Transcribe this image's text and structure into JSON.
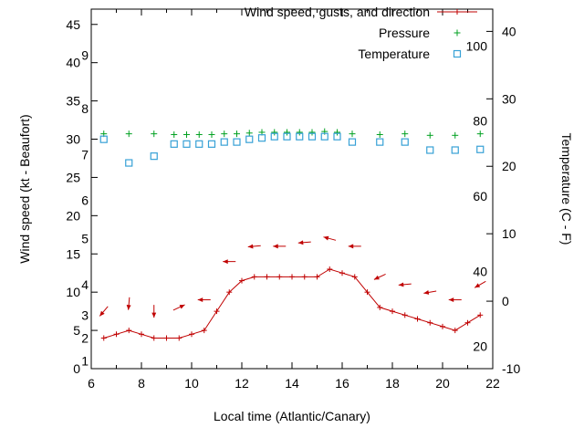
{
  "chart_data": {
    "type": "line",
    "title": "",
    "xlabel": "Local time (Atlantic/Canary)",
    "ylabel": "Wind speed (kt - Beaufort)",
    "y2label": "Temperature (C - F)",
    "x_range": [
      6,
      22
    ],
    "y_range": [
      0,
      47
    ],
    "y2_range": [
      -10,
      43.3
    ],
    "x_ticks": [
      6,
      8,
      10,
      12,
      14,
      16,
      18,
      20,
      22
    ],
    "x_minor_ticks": [
      7,
      9,
      11,
      13,
      15,
      17,
      19,
      21
    ],
    "y_ticks": [
      0,
      5,
      10,
      15,
      20,
      25,
      30,
      35,
      40,
      45
    ],
    "y2_ticks": [
      -10,
      0,
      10,
      20,
      30,
      40
    ],
    "beaufort_labels": [
      {
        "label": "1",
        "kt": 1
      },
      {
        "label": "2",
        "kt": 4
      },
      {
        "label": "3",
        "kt": 7
      },
      {
        "label": "4",
        "kt": 11
      },
      {
        "label": "5",
        "kt": 17
      },
      {
        "label": "6",
        "kt": 22
      },
      {
        "label": "7",
        "kt": 28
      },
      {
        "label": "8",
        "kt": 34
      },
      {
        "label": "9",
        "kt": 41
      }
    ],
    "fahrenheit_labels": [
      {
        "label": "20",
        "c": -6.7
      },
      {
        "label": "40",
        "c": 4.4
      },
      {
        "label": "60",
        "c": 15.6
      },
      {
        "label": "80",
        "c": 26.7
      },
      {
        "label": "100",
        "c": 37.8
      }
    ],
    "legend": [
      {
        "label": "Wind speed, gusts, and direction",
        "marker": "line-plus",
        "series": "wind_speed"
      },
      {
        "label": "Pressure",
        "marker": "plus",
        "series": "pressure"
      },
      {
        "label": "Temperature",
        "marker": "square",
        "series": "temperature"
      }
    ],
    "legend_position": "top-right-inside",
    "grid": false,
    "colors": {
      "wind_speed": "#c00000",
      "pressure": "#00a020",
      "temperature": "#37a1d6",
      "axis": "#000000"
    },
    "series": {
      "wind_speed": {
        "x": [
          6.5,
          7,
          7.5,
          8,
          8.5,
          9,
          9.5,
          10,
          10.5,
          11,
          11.5,
          12,
          12.5,
          13,
          13.5,
          14,
          14.5,
          15,
          15.5,
          16,
          16.5,
          17,
          17.5,
          18,
          18.5,
          19,
          19.5,
          20,
          20.5,
          21,
          21.5
        ],
        "y": [
          4,
          4.5,
          5,
          4.5,
          4,
          4,
          4,
          4.5,
          5,
          7.5,
          10,
          11.5,
          12,
          12,
          12,
          12,
          12,
          12,
          13,
          12.5,
          12,
          10,
          8,
          7.5,
          7,
          6.5,
          6,
          5.5,
          5,
          6,
          7
        ]
      },
      "gusts_direction": {
        "points": [
          {
            "x": 6.5,
            "y": 7.5,
            "dir": 230
          },
          {
            "x": 7.5,
            "y": 8.5,
            "dir": 265
          },
          {
            "x": 8.5,
            "y": 7.5,
            "dir": 270
          },
          {
            "x": 9.5,
            "y": 8,
            "dir": 25
          },
          {
            "x": 10.5,
            "y": 9,
            "dir": 180
          },
          {
            "x": 11.5,
            "y": 14,
            "dir": 180
          },
          {
            "x": 12.5,
            "y": 16,
            "dir": 185
          },
          {
            "x": 13.5,
            "y": 16,
            "dir": 180
          },
          {
            "x": 14.5,
            "y": 16.5,
            "dir": 185
          },
          {
            "x": 15.5,
            "y": 17,
            "dir": 165
          },
          {
            "x": 16.5,
            "y": 16,
            "dir": 180
          },
          {
            "x": 17.5,
            "y": 12,
            "dir": 205
          },
          {
            "x": 18.5,
            "y": 11,
            "dir": 185
          },
          {
            "x": 19.5,
            "y": 10,
            "dir": 190
          },
          {
            "x": 20.5,
            "y": 9,
            "dir": 180
          },
          {
            "x": 21.5,
            "y": 11,
            "dir": 210
          }
        ]
      },
      "pressure": {
        "x": [
          6.5,
          7.5,
          8.5,
          9.3,
          9.8,
          10.3,
          10.8,
          11.3,
          11.8,
          12.3,
          12.8,
          13.3,
          13.8,
          14.3,
          14.8,
          15.3,
          15.8,
          16.4,
          17.5,
          18.5,
          19.5,
          20.5,
          21.5
        ],
        "y": [
          30.7,
          30.7,
          30.7,
          30.6,
          30.6,
          30.6,
          30.6,
          30.7,
          30.7,
          30.8,
          30.9,
          30.9,
          30.9,
          30.9,
          30.9,
          31,
          30.9,
          30.7,
          30.6,
          30.7,
          30.5,
          30.5,
          30.7
        ]
      },
      "temperature": {
        "x": [
          6.5,
          7.5,
          8.5,
          9.3,
          9.8,
          10.3,
          10.8,
          11.3,
          11.8,
          12.3,
          12.8,
          13.3,
          13.8,
          14.3,
          14.8,
          15.3,
          15.8,
          16.4,
          17.5,
          18.5,
          19.5,
          20.5,
          21.5
        ],
        "c": [
          24,
          20.5,
          21.5,
          23.3,
          23.3,
          23.3,
          23.3,
          23.6,
          23.6,
          24,
          24.2,
          24.4,
          24.4,
          24.4,
          24.4,
          24.4,
          24.4,
          23.6,
          23.6,
          23.6,
          22.4,
          22.4,
          22.5
        ]
      }
    }
  }
}
